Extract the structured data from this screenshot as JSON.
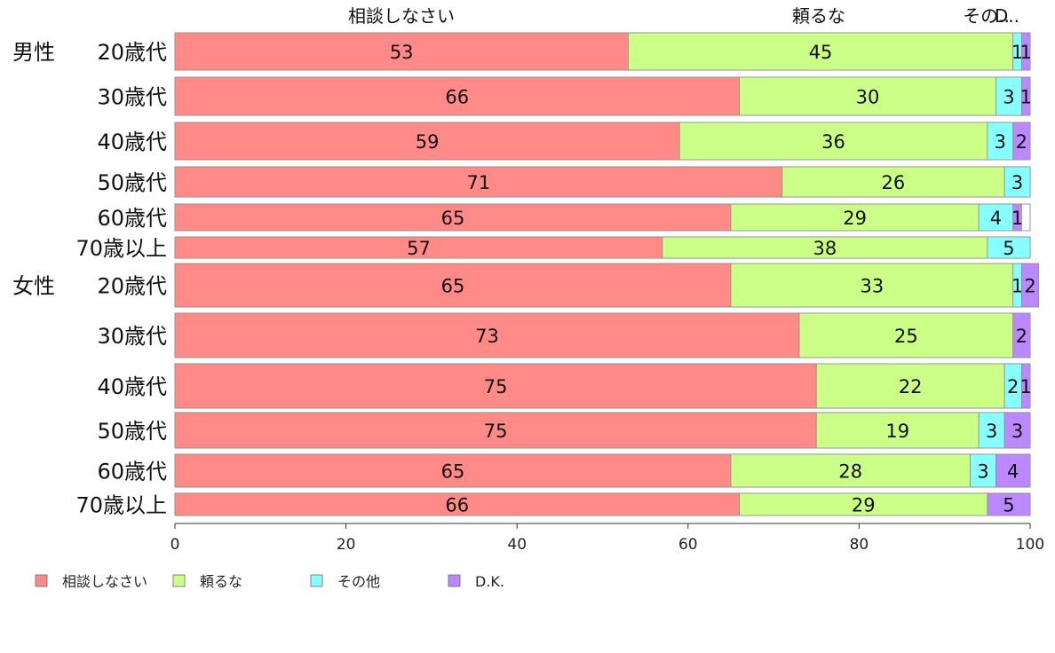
{
  "chart_data": {
    "type": "bar",
    "orientation": "horizontal",
    "stacked": true,
    "xlim": [
      0,
      100
    ],
    "xticks": [
      "0",
      "20",
      "40",
      "60",
      "80",
      "100"
    ],
    "column_headers": [
      "相談しなさい",
      "頼るな",
      "その..",
      "D.."
    ],
    "series": [
      {
        "name": "相談しなさい",
        "color": "#ff8a87"
      },
      {
        "name": "頼るな",
        "color": "#ccff88"
      },
      {
        "name": "その他",
        "color": "#88ffff"
      },
      {
        "name": "D.K.",
        "color": "#bb88ff"
      }
    ],
    "rows": [
      {
        "group": "男性",
        "label": "20歳代",
        "values": [
          53,
          45,
          1,
          1
        ]
      },
      {
        "group": "",
        "label": "30歳代",
        "values": [
          66,
          30,
          3,
          1
        ]
      },
      {
        "group": "",
        "label": "40歳代",
        "values": [
          59,
          36,
          3,
          2
        ]
      },
      {
        "group": "",
        "label": "50歳代",
        "values": [
          71,
          26,
          3,
          0
        ]
      },
      {
        "group": "",
        "label": "60歳代",
        "values": [
          65,
          29,
          4,
          1
        ]
      },
      {
        "group": "",
        "label": "70歳以上",
        "values": [
          57,
          38,
          5,
          0
        ]
      },
      {
        "group": "女性",
        "label": "20歳代",
        "values": [
          65,
          33,
          1,
          2
        ]
      },
      {
        "group": "",
        "label": "30歳代",
        "values": [
          73,
          25,
          0,
          2
        ]
      },
      {
        "group": "",
        "label": "40歳代",
        "values": [
          75,
          22,
          2,
          1
        ]
      },
      {
        "group": "",
        "label": "50歳代",
        "values": [
          75,
          19,
          3,
          3
        ]
      },
      {
        "group": "",
        "label": "60歳代",
        "values": [
          65,
          28,
          3,
          4
        ]
      },
      {
        "group": "",
        "label": "70歳以上",
        "values": [
          66,
          29,
          0,
          5
        ]
      }
    ],
    "legend": {
      "position": "bottom-left"
    },
    "grid": false
  }
}
